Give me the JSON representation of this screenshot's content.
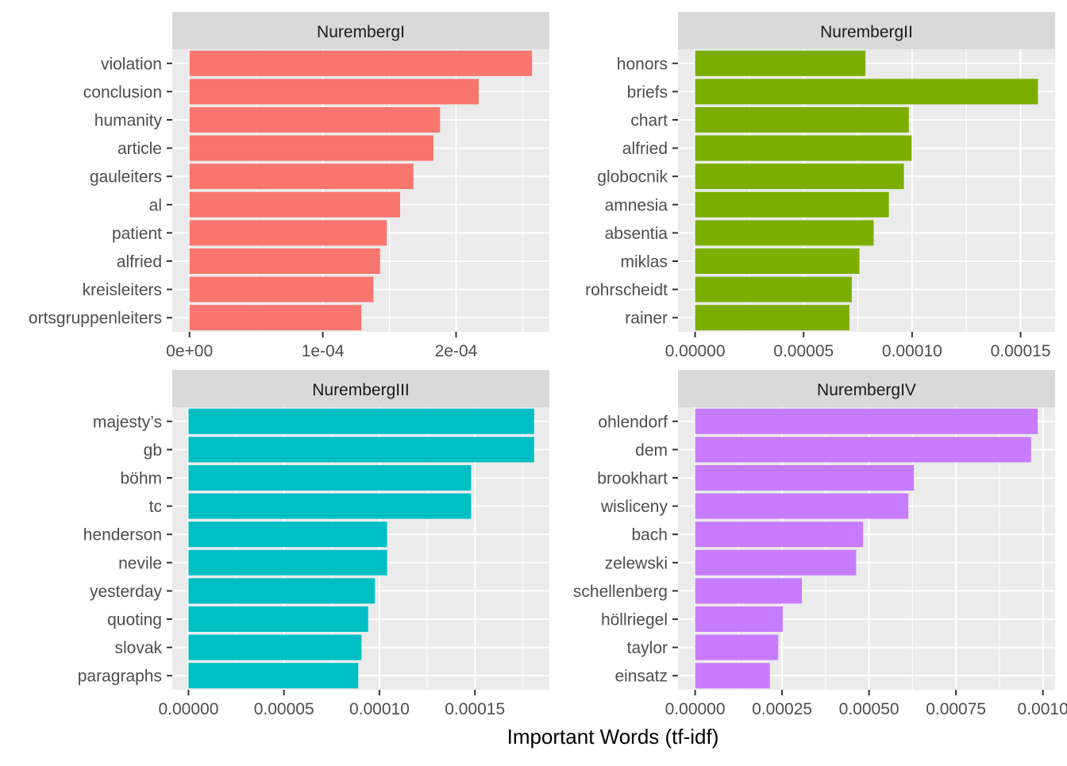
{
  "xlabel": "Important Words (tf-idf)",
  "chart_data": [
    {
      "type": "bar",
      "orientation": "horizontal",
      "title": "NurembergI",
      "categories": [
        "violation",
        "conclusion",
        "humanity",
        "article",
        "gauleiters",
        "al",
        "patient",
        "alfried",
        "kreisleiters",
        "ortsgruppenleiters"
      ],
      "values": [
        0.000257,
        0.000217,
        0.000188,
        0.000183,
        0.000168,
        0.000158,
        0.000148,
        0.000143,
        0.000138,
        0.000129
      ],
      "xlim": [
        -1.29e-05,
        0.00027
      ],
      "ticks": [
        0,
        0.0001,
        0.0002
      ],
      "tick_labels": [
        "0e+00",
        "1e-04",
        "2e-04"
      ],
      "color": "#F8766D",
      "grid": true
    },
    {
      "type": "bar",
      "orientation": "horizontal",
      "title": "NurembergII",
      "categories": [
        "honors",
        "briefs",
        "chart",
        "alfried",
        "globocnik",
        "amnesia",
        "absentia",
        "miklas",
        "rohrscheidt",
        "rainer"
      ],
      "values": [
        7.85e-05,
        0.000158,
        9.85e-05,
        9.98e-05,
        9.62e-05,
        8.93e-05,
        8.23e-05,
        7.57e-05,
        7.22e-05,
        7.11e-05
      ],
      "xlim": [
        -7.9e-06,
        0.0001659
      ],
      "ticks": [
        0,
        5e-05,
        0.0001,
        0.00015
      ],
      "tick_labels": [
        "0.00000",
        "0.00005",
        "0.00010",
        "0.00015"
      ],
      "color": "#7CAE00",
      "grid": true
    },
    {
      "type": "bar",
      "orientation": "horizontal",
      "title": "NurembergIII",
      "categories": [
        "majesty’s",
        "gb",
        "böhm",
        "tc",
        "henderson",
        "nevile",
        "yesterday",
        "quoting",
        "slovak",
        "paragraphs"
      ],
      "values": [
        0.000181,
        0.000181,
        0.000148,
        0.000148,
        0.000104,
        0.000104,
        9.76e-05,
        9.41e-05,
        9.06e-05,
        8.89e-05
      ],
      "xlim": [
        -8.5e-06,
        0.000189
      ],
      "ticks": [
        0,
        5e-05,
        0.0001,
        0.00015
      ],
      "tick_labels": [
        "0.00000",
        "0.00005",
        "0.00010",
        "0.00015"
      ],
      "color": "#00BFC4",
      "grid": true
    },
    {
      "type": "bar",
      "orientation": "horizontal",
      "title": "NurembergIV",
      "categories": [
        "ohlendorf",
        "dem",
        "brookhart",
        "wisliceny",
        "bach",
        "zelewski",
        "schellenberg",
        "höllriegel",
        "taylor",
        "einsatz"
      ],
      "values": [
        0.000985,
        0.000966,
        0.000629,
        0.000613,
        0.000483,
        0.000463,
        0.000307,
        0.000252,
        0.000239,
        0.000215
      ],
      "xlim": [
        -4.93e-05,
        0.001035
      ],
      "ticks": [
        0,
        0.00025,
        0.0005,
        0.00075,
        0.001
      ],
      "tick_labels": [
        "0.00000",
        "0.00025",
        "0.00050",
        "0.00075",
        "0.0010"
      ],
      "color": "#C77CFF",
      "grid": true
    }
  ]
}
